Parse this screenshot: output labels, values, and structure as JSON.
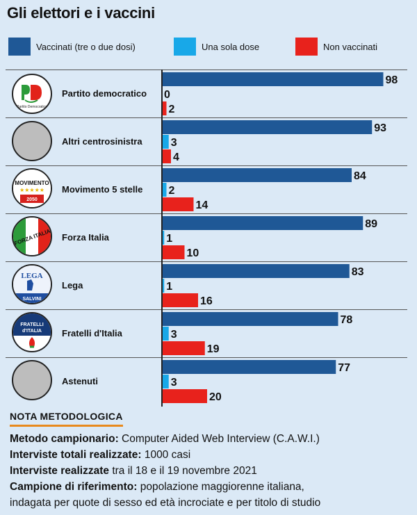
{
  "title": "Gli elettori e i vaccini",
  "legend": [
    {
      "label": "Vaccinati (tre o due dosi)",
      "color": "#1f5896"
    },
    {
      "label": "Una sola dose",
      "color": "#18a8e8"
    },
    {
      "label": "Non vaccinati",
      "color": "#e8221c"
    }
  ],
  "chart_data": {
    "type": "bar",
    "orientation": "horizontal",
    "categories": [
      "Partito democratico",
      "Altri centrosinistra",
      "Movimento 5 stelle",
      "Forza Italia",
      "Lega",
      "Fratelli d'Italia",
      "Astenuti"
    ],
    "series": [
      {
        "name": "Vaccinati (tre o due dosi)",
        "values": [
          98,
          93,
          84,
          89,
          83,
          78,
          77
        ]
      },
      {
        "name": "Una sola dose",
        "values": [
          0,
          3,
          2,
          1,
          1,
          3,
          3
        ]
      },
      {
        "name": "Non vaccinati",
        "values": [
          2,
          4,
          14,
          10,
          16,
          19,
          20
        ]
      }
    ],
    "xlim": [
      0,
      100
    ],
    "title": "Gli elettori e i vaccini",
    "legend_position": "top",
    "grid": false
  },
  "logos": {
    "pd": "PD",
    "pd_caption": "Partito Democratico",
    "m5s": "MOVIMENTO",
    "m5s_stars": "★★★★★",
    "m5s_year": "2050",
    "fi": "FORZA ITALIA",
    "lega": "LEGA",
    "lega_sub": "SALVINI",
    "fdi_top": "FRATELLI",
    "fdi_bottom": "d'ITALIA"
  },
  "nota": {
    "heading": "NOTA METODOLOGICA",
    "lines": [
      {
        "label": "Metodo campionario:",
        "text": " Computer Aided Web Interview (C.A.W.I.)"
      },
      {
        "label": "Interviste totali realizzate:",
        "text": " 1000 casi"
      },
      {
        "label": "Interviste realizzate",
        "text": " tra il 18 e il 19 novembre 2021"
      },
      {
        "label": "Campione di riferimento:",
        "text": " popolazione maggiorenne italiana,"
      },
      {
        "label": "",
        "text": "indagata per quote di sesso ed età incrociate e per titolo di studio"
      }
    ]
  }
}
